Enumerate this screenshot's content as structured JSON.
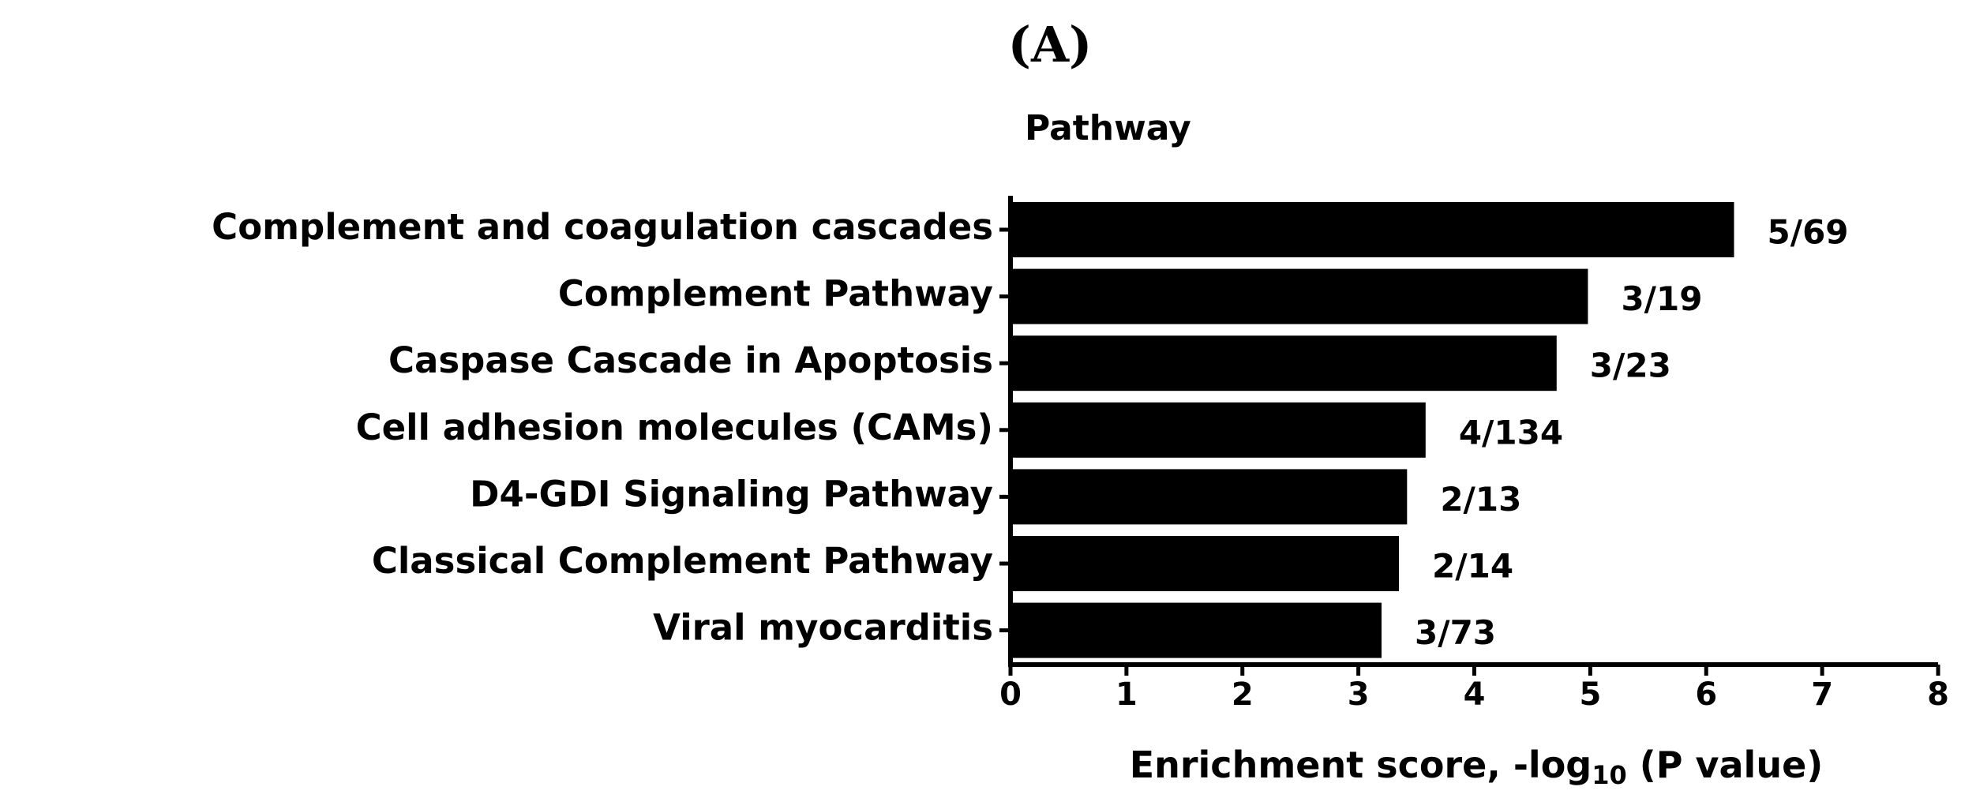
{
  "chart_data": {
    "type": "bar",
    "orientation": "horizontal",
    "title": "(A)",
    "y_label": "Pathway",
    "x_label": [
      "Enrichment score, -log",
      "10",
      " (P value)"
    ],
    "categories": [
      "Complement and coagulation cascades",
      "Complement Pathway",
      "Caspase Cascade in Apoptosis",
      "Cell adhesion molecules (CAMs)",
      "D4-GDI Signaling Pathway",
      "Classical Complement Pathway",
      "Viral myocarditis"
    ],
    "values": [
      6.24,
      4.98,
      4.71,
      3.58,
      3.42,
      3.35,
      3.2
    ],
    "annotations": [
      "5/69",
      "3/19",
      "3/23",
      "4/134",
      "2/13",
      "2/14",
      "3/73"
    ],
    "color": "#000000",
    "xlim": [
      0,
      8
    ],
    "xticks": [
      0,
      1,
      2,
      3,
      4,
      5,
      6,
      7,
      8
    ],
    "grid": false
  }
}
